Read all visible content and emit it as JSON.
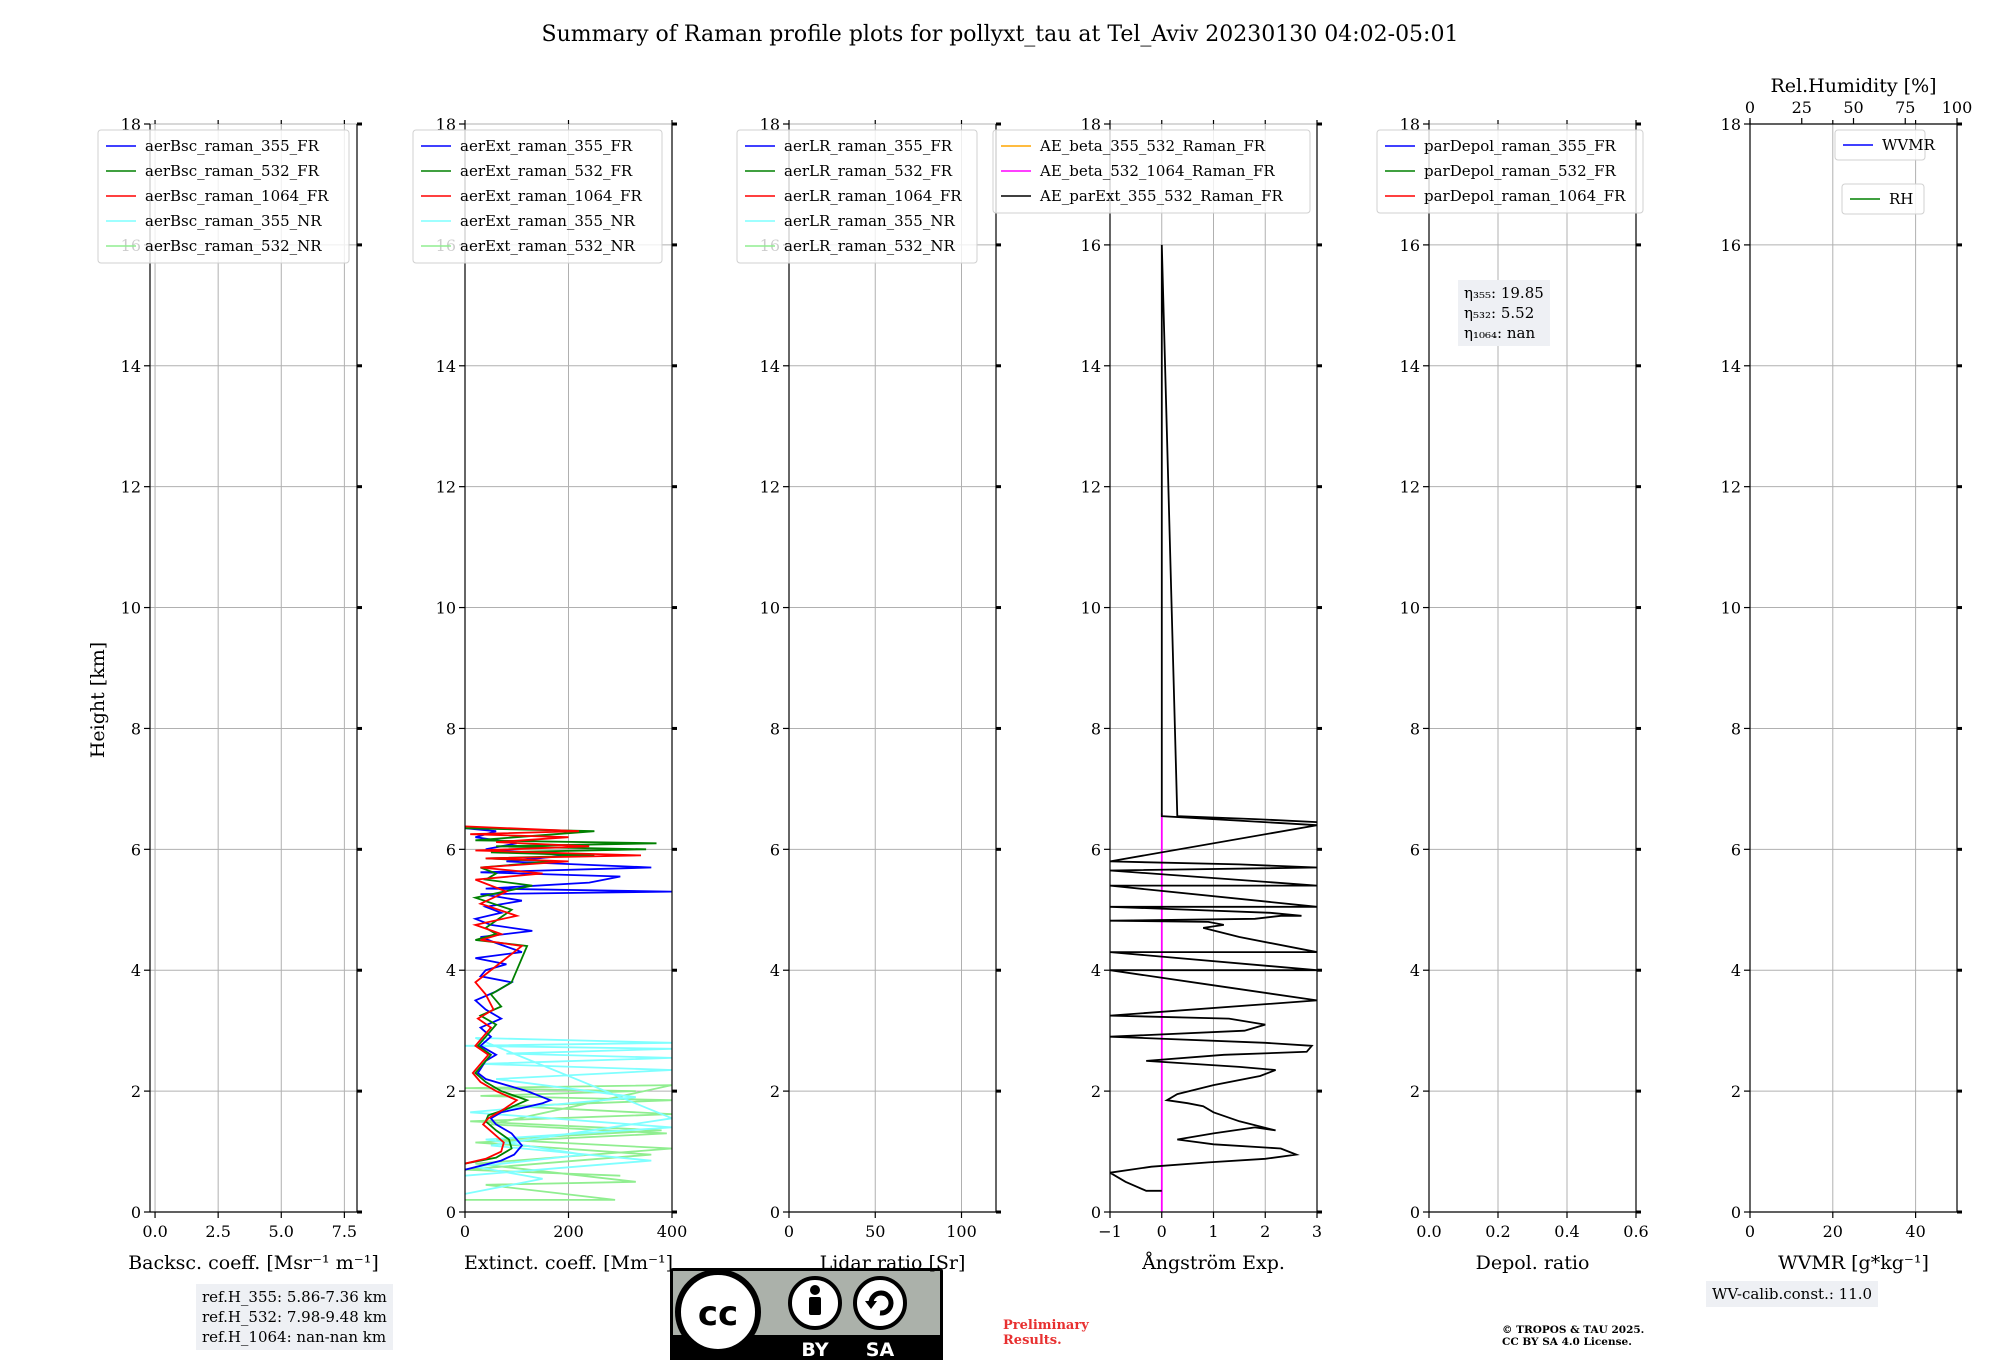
{
  "title": "Summary of Raman profile plots for pollyxt_tau at Tel_Aviv 20230130 04:02-05:01",
  "ylabel": "Height [km]",
  "colors": {
    "c355_FR": "#0000ff",
    "c532_FR": "#008000",
    "c1064_FR": "#ff0000",
    "c355_NR": "#7fffff",
    "c532_NR": "#90ee90",
    "ae_beta_355_532": "#ffa500",
    "ae_beta_532_1064": "#ff00ff",
    "ae_parExt": "#000000"
  },
  "chart_data": [
    {
      "type": "line",
      "id": "bsc",
      "xlabel": "Backsc. coeff. [Msr⁻¹ m⁻¹]",
      "xlim": [
        -0.2,
        8.0
      ],
      "ylim": [
        0,
        18
      ],
      "xticks": [
        0.0,
        2.5,
        5.0,
        7.5
      ],
      "xtick_labels": [
        "0.0",
        "2.5",
        "5.0",
        "7.5"
      ],
      "yticks": [
        0,
        2,
        4,
        6,
        8,
        10,
        12,
        14,
        16,
        18
      ],
      "legend": [
        "aerBsc_raman_355_FR",
        "aerBsc_raman_532_FR",
        "aerBsc_raman_1064_FR",
        "aerBsc_raman_355_NR",
        "aerBsc_raman_532_NR"
      ],
      "legend_colors": [
        "#0000ff",
        "#008000",
        "#ff0000",
        "#7fffff",
        "#90ee90"
      ],
      "legend_position": "top-left",
      "series": []
    },
    {
      "type": "line",
      "id": "ext",
      "xlabel": "Extinct. coeff. [Mm⁻¹]",
      "xlim": [
        0,
        400
      ],
      "ylim": [
        0,
        18
      ],
      "xticks": [
        0,
        200,
        400
      ],
      "xtick_labels": [
        "0",
        "200",
        "400"
      ],
      "yticks": [
        0,
        2,
        4,
        6,
        8,
        10,
        12,
        14,
        16,
        18
      ],
      "legend": [
        "aerExt_raman_355_FR",
        "aerExt_raman_532_FR",
        "aerExt_raman_1064_FR",
        "aerExt_raman_355_NR",
        "aerExt_raman_532_NR"
      ],
      "legend_colors": [
        "#0000ff",
        "#008000",
        "#ff0000",
        "#7fffff",
        "#90ee90"
      ],
      "legend_position": "top-left",
      "series": [
        {
          "name": "aerExt_raman_532_NR",
          "color": "#90ee90",
          "x": [
            0,
            290,
            40,
            330,
            20,
            400,
            60,
            380,
            10,
            400,
            90,
            400,
            30,
            330,
            0,
            400,
            50,
            390,
            20,
            360,
            0,
            300
          ],
          "y": [
            0.2,
            0.2,
            0.45,
            0.5,
            0.8,
            1.05,
            1.2,
            1.35,
            1.5,
            1.62,
            1.75,
            1.85,
            1.92,
            2.0,
            2.05,
            2.1,
            1.45,
            1.3,
            1.15,
            0.95,
            0.7,
            0.6
          ]
        },
        {
          "name": "aerExt_raman_355_NR",
          "color": "#7fffff",
          "x": [
            0,
            150,
            20,
            230,
            40,
            400,
            10,
            330,
            60,
            400,
            30,
            400,
            80,
            400,
            0,
            400,
            20,
            400,
            50,
            360,
            0
          ],
          "y": [
            0.3,
            0.55,
            0.75,
            0.95,
            1.2,
            1.4,
            1.65,
            1.9,
            2.2,
            2.35,
            2.45,
            2.55,
            2.62,
            2.7,
            2.75,
            2.8,
            2.88,
            1.55,
            1.1,
            0.85,
            0.6
          ]
        },
        {
          "name": "aerExt_raman_355_FR",
          "color": "#0000ff",
          "x": [
            0,
            70,
            95,
            110,
            90,
            60,
            50,
            70,
            110,
            150,
            165,
            120,
            80,
            40,
            25,
            40,
            60,
            30,
            50,
            30,
            70,
            40,
            20,
            60,
            90,
            30,
            40,
            80,
            20,
            110,
            60,
            30,
            130,
            50,
            20,
            70,
            40,
            110,
            60,
            30,
            400,
            40,
            240,
            300,
            30,
            360,
            80,
            200,
            40,
            100,
            20,
            60,
            0
          ],
          "y": [
            0.7,
            0.85,
            0.95,
            1.1,
            1.3,
            1.45,
            1.55,
            1.65,
            1.72,
            1.8,
            1.85,
            2.0,
            2.1,
            2.2,
            2.3,
            2.5,
            2.6,
            2.75,
            2.9,
            3.05,
            3.2,
            3.35,
            3.5,
            3.65,
            3.8,
            3.9,
            4.0,
            4.1,
            4.2,
            4.3,
            4.45,
            4.55,
            4.65,
            4.75,
            4.85,
            4.95,
            5.05,
            5.15,
            5.22,
            5.26,
            5.3,
            5.35,
            5.45,
            5.55,
            5.62,
            5.7,
            5.8,
            5.9,
            6.0,
            6.1,
            6.2,
            6.3,
            6.35
          ]
        },
        {
          "name": "aerExt_raman_532_FR",
          "color": "#008000",
          "x": [
            0,
            60,
            90,
            85,
            60,
            40,
            45,
            80,
            120,
            70,
            40,
            20,
            35,
            50,
            25,
            40,
            60,
            30,
            70,
            50,
            90,
            120,
            20,
            60,
            40,
            90,
            20,
            130,
            40,
            60,
            30,
            170,
            40,
            250,
            50,
            350,
            60,
            370,
            20,
            250,
            0
          ],
          "y": [
            0.8,
            0.9,
            1.05,
            1.2,
            1.35,
            1.5,
            1.6,
            1.7,
            1.85,
            2.0,
            2.15,
            2.3,
            2.45,
            2.6,
            2.75,
            2.9,
            3.1,
            3.25,
            3.4,
            3.6,
            3.8,
            4.4,
            4.5,
            4.6,
            4.7,
            5.0,
            5.2,
            5.4,
            5.5,
            5.6,
            5.7,
            5.8,
            5.85,
            5.9,
            5.95,
            6.0,
            6.05,
            6.1,
            6.15,
            6.3,
            6.35
          ]
        },
        {
          "name": "aerExt_raman_1064_FR",
          "color": "#ff0000",
          "x": [
            0,
            40,
            70,
            75,
            55,
            35,
            45,
            75,
            100,
            60,
            30,
            15,
            30,
            45,
            20,
            35,
            50,
            25,
            55,
            40,
            20,
            110,
            30,
            70,
            20,
            100,
            30,
            80,
            20,
            150,
            30,
            200,
            40,
            340,
            20,
            240,
            60,
            200,
            10,
            220,
            0
          ],
          "y": [
            0.8,
            0.88,
            1.0,
            1.15,
            1.3,
            1.45,
            1.55,
            1.7,
            1.85,
            2.0,
            2.15,
            2.3,
            2.45,
            2.6,
            2.75,
            2.9,
            3.05,
            3.2,
            3.35,
            3.6,
            3.8,
            4.4,
            4.5,
            4.6,
            4.75,
            4.9,
            5.1,
            5.3,
            5.5,
            5.6,
            5.7,
            5.8,
            5.85,
            5.9,
            5.98,
            6.05,
            6.12,
            6.2,
            6.25,
            6.3,
            6.38
          ]
        }
      ]
    },
    {
      "type": "line",
      "id": "lr",
      "xlabel": "Lidar ratio [Sr]",
      "xlim": [
        0,
        120
      ],
      "ylim": [
        0,
        18
      ],
      "xticks": [
        0,
        50,
        100
      ],
      "xtick_labels": [
        "0",
        "50",
        "100"
      ],
      "yticks": [
        0,
        2,
        4,
        6,
        8,
        10,
        12,
        14,
        16,
        18
      ],
      "legend": [
        "aerLR_raman_355_FR",
        "aerLR_raman_532_FR",
        "aerLR_raman_1064_FR",
        "aerLR_raman_355_NR",
        "aerLR_raman_532_NR"
      ],
      "legend_colors": [
        "#0000ff",
        "#008000",
        "#ff0000",
        "#7fffff",
        "#90ee90"
      ],
      "legend_position": "top-left",
      "series": []
    },
    {
      "type": "line",
      "id": "ae",
      "xlabel": "Ångström Exp.",
      "xlim": [
        -1,
        3
      ],
      "ylim": [
        0,
        18
      ],
      "xticks": [
        -1,
        0,
        1,
        2,
        3
      ],
      "xtick_labels": [
        "−1",
        "0",
        "1",
        "2",
        "3"
      ],
      "yticks": [
        0,
        2,
        4,
        6,
        8,
        10,
        12,
        14,
        16,
        18
      ],
      "legend": [
        "AE_beta_355_532_Raman_FR",
        "AE_beta_532_1064_Raman_FR",
        "AE_parExt_355_532_Raman_FR"
      ],
      "legend_colors": [
        "#ffa500",
        "#ff00ff",
        "#000000"
      ],
      "legend_position": "top-right",
      "series": [
        {
          "name": "AE_beta_532_1064_Raman_FR",
          "color": "#ff00ff",
          "x": [
            0,
            0
          ],
          "y": [
            0.0,
            6.6
          ]
        },
        {
          "name": "AE_parExt_355_532_Raman_FR",
          "color": "#000000",
          "x": [
            0,
            -0.3,
            -0.7,
            -1.0,
            -0.2,
            0.9,
            2.0,
            2.6,
            2.3,
            1.0,
            0.3,
            1.0,
            1.8,
            2.2,
            1.5,
            1.0,
            0.8,
            0.5,
            0.1,
            0.3,
            1.0,
            1.9,
            2.2,
            1.5,
            -0.3,
            1.2,
            2.8,
            2.9,
            2.0,
            -1.0,
            1.6,
            2.0,
            1.3,
            -1.0,
            3.0,
            1.0,
            -1.0,
            3.0,
            -1.0,
            3.0,
            1.5,
            0.8,
            1.2,
            0.9,
            -1.0,
            1.8,
            2.3,
            2.7,
            2.1,
            -1.0,
            3.0,
            -1.0,
            3.0,
            -1.0,
            3.0,
            1.5,
            -1.0,
            3.0,
            0.0,
            0.0,
            0.3,
            1.8,
            3.0
          ],
          "y": [
            0.35,
            0.35,
            0.5,
            0.65,
            0.75,
            0.82,
            0.88,
            0.95,
            1.05,
            1.12,
            1.2,
            1.3,
            1.4,
            1.35,
            1.5,
            1.65,
            1.75,
            1.8,
            1.85,
            1.95,
            2.1,
            2.25,
            2.35,
            2.4,
            2.5,
            2.6,
            2.65,
            2.75,
            2.8,
            2.9,
            3.0,
            3.1,
            3.2,
            3.25,
            3.5,
            3.75,
            4.0,
            4.0,
            4.3,
            4.3,
            4.55,
            4.7,
            4.75,
            4.8,
            4.82,
            4.85,
            4.9,
            4.9,
            4.95,
            5.05,
            5.05,
            5.4,
            5.4,
            5.65,
            5.7,
            5.75,
            5.8,
            6.4,
            6.55,
            16.0,
            6.55,
            6.5,
            6.45
          ]
        }
      ]
    },
    {
      "type": "line",
      "id": "depol",
      "xlabel": "Depol. ratio",
      "xlim": [
        0,
        0.6
      ],
      "ylim": [
        0,
        18
      ],
      "xticks": [
        0.0,
        0.2,
        0.4,
        0.6
      ],
      "xtick_labels": [
        "0.0",
        "0.2",
        "0.4",
        "0.6"
      ],
      "yticks": [
        0,
        2,
        4,
        6,
        8,
        10,
        12,
        14,
        16,
        18
      ],
      "legend": [
        "parDepol_raman_355_FR",
        "parDepol_raman_532_FR",
        "parDepol_raman_1064_FR"
      ],
      "legend_colors": [
        "#0000ff",
        "#008000",
        "#ff0000"
      ],
      "legend_position": "top-left",
      "series": []
    },
    {
      "type": "line",
      "id": "wv",
      "xlabel": "WVMR [g*kg⁻¹]",
      "xlim": [
        0,
        50
      ],
      "ylim": [
        0,
        18
      ],
      "xticks": [
        0,
        20,
        40
      ],
      "xtick_labels": [
        "0",
        "20",
        "40"
      ],
      "top_axis": {
        "label": "Rel.Humidity [%]",
        "ticks": [
          0,
          25,
          50,
          75,
          100
        ],
        "tick_labels": [
          "0",
          "25",
          "50",
          "75",
          "100"
        ],
        "lim": [
          0,
          100
        ]
      },
      "yticks": [
        0,
        2,
        4,
        6,
        8,
        10,
        12,
        14,
        16,
        18
      ],
      "legend": [
        "WVMR",
        "RH"
      ],
      "legend_colors": [
        "#0000ff",
        "#008000"
      ],
      "legend_position": "top-right",
      "series": []
    }
  ],
  "annotations": {
    "eta_355_label": "η₃₅₅: 19.85",
    "eta_532_label": "η₅₃₂: 5.52",
    "eta_1064_label": "η₁₀₆₄: nan",
    "ref_h_355": "ref.H_355: 5.86-7.36 km",
    "ref_h_532": "ref.H_532: 7.98-9.48 km",
    "ref_h_1064": "ref.H_1064: nan-nan km",
    "wv_calib": "WV-calib.const.: 11.0",
    "preliminary_1": "Preliminary",
    "preliminary_2": "Results.",
    "copyright_1": "© TROPOS & TAU 2025.",
    "copyright_2": "CC BY SA 4.0 License.",
    "cc_badge": [
      "BY",
      "SA"
    ]
  }
}
